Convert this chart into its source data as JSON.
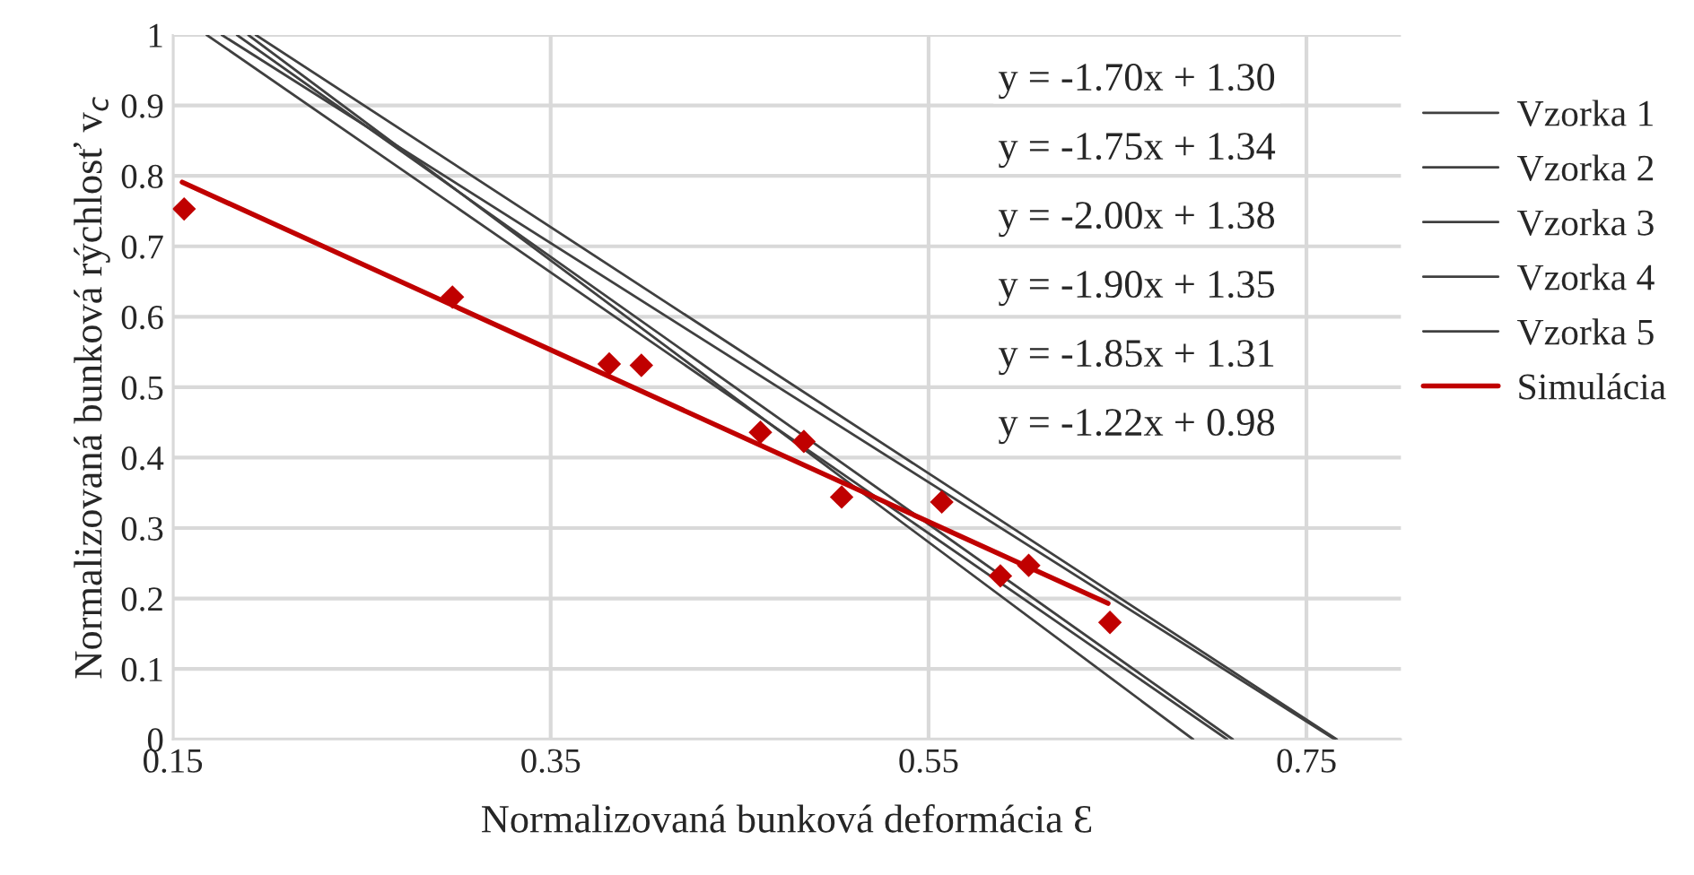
{
  "chart_data": {
    "type": "scatter",
    "xlabel": "Normalizovaná bunková deformácia Ɛ",
    "ylabel": "Normalizovaná bunková rýchlosť v$_{c}$",
    "xlim": [
      0.15,
      0.8
    ],
    "xticks": [
      0.15,
      0.35,
      0.55,
      0.75
    ],
    "ylim": [
      0,
      1
    ],
    "yticks": [
      0,
      0.1,
      0.2,
      0.3,
      0.4,
      0.5,
      0.6,
      0.7,
      0.8,
      0.9,
      1
    ],
    "grid": true,
    "legend": "right",
    "annotations": [
      "y = -1.70x + 1.30",
      "y = -1.75x + 1.34",
      "y = -2.00x + 1.38",
      "y = -1.90x + 1.35",
      "y = -1.85x + 1.31",
      "y = -1.22x + 0.98"
    ],
    "series": [
      {
        "marker": "diamond",
        "color": "#c00000",
        "x": [
          0.156,
          0.298,
          0.381,
          0.398,
          0.461,
          0.484,
          0.504,
          0.557,
          0.588,
          0.603,
          0.646
        ],
        "values": [
          0.753,
          0.628,
          0.533,
          0.531,
          0.436,
          0.423,
          0.344,
          0.337,
          0.232,
          0.247,
          0.166
        ]
      },
      {
        "type": "line",
        "name": "Vzorka 1",
        "color": "#404040",
        "x": [
          0.176,
          0.765
        ],
        "values": [
          1,
          0
        ]
      },
      {
        "type": "line",
        "name": "Vzorka 2",
        "color": "#404040",
        "x": [
          0.194,
          0.766
        ],
        "values": [
          1,
          0
        ]
      },
      {
        "type": "line",
        "name": "Vzorka 3",
        "color": "#404040",
        "x": [
          0.19,
          0.69
        ],
        "values": [
          1,
          0
        ]
      },
      {
        "type": "line",
        "name": "Vzorka 4",
        "color": "#404040",
        "x": [
          0.184,
          0.711
        ],
        "values": [
          1,
          0
        ]
      },
      {
        "type": "line",
        "name": "Vzorka 5",
        "color": "#404040",
        "x": [
          0.168,
          0.708
        ],
        "values": [
          1,
          0
        ]
      },
      {
        "type": "line",
        "name": "Simulácia",
        "color": "#c00000",
        "x": [
          0.155,
          0.645
        ],
        "values": [
          0.791,
          0.193
        ]
      }
    ]
  }
}
